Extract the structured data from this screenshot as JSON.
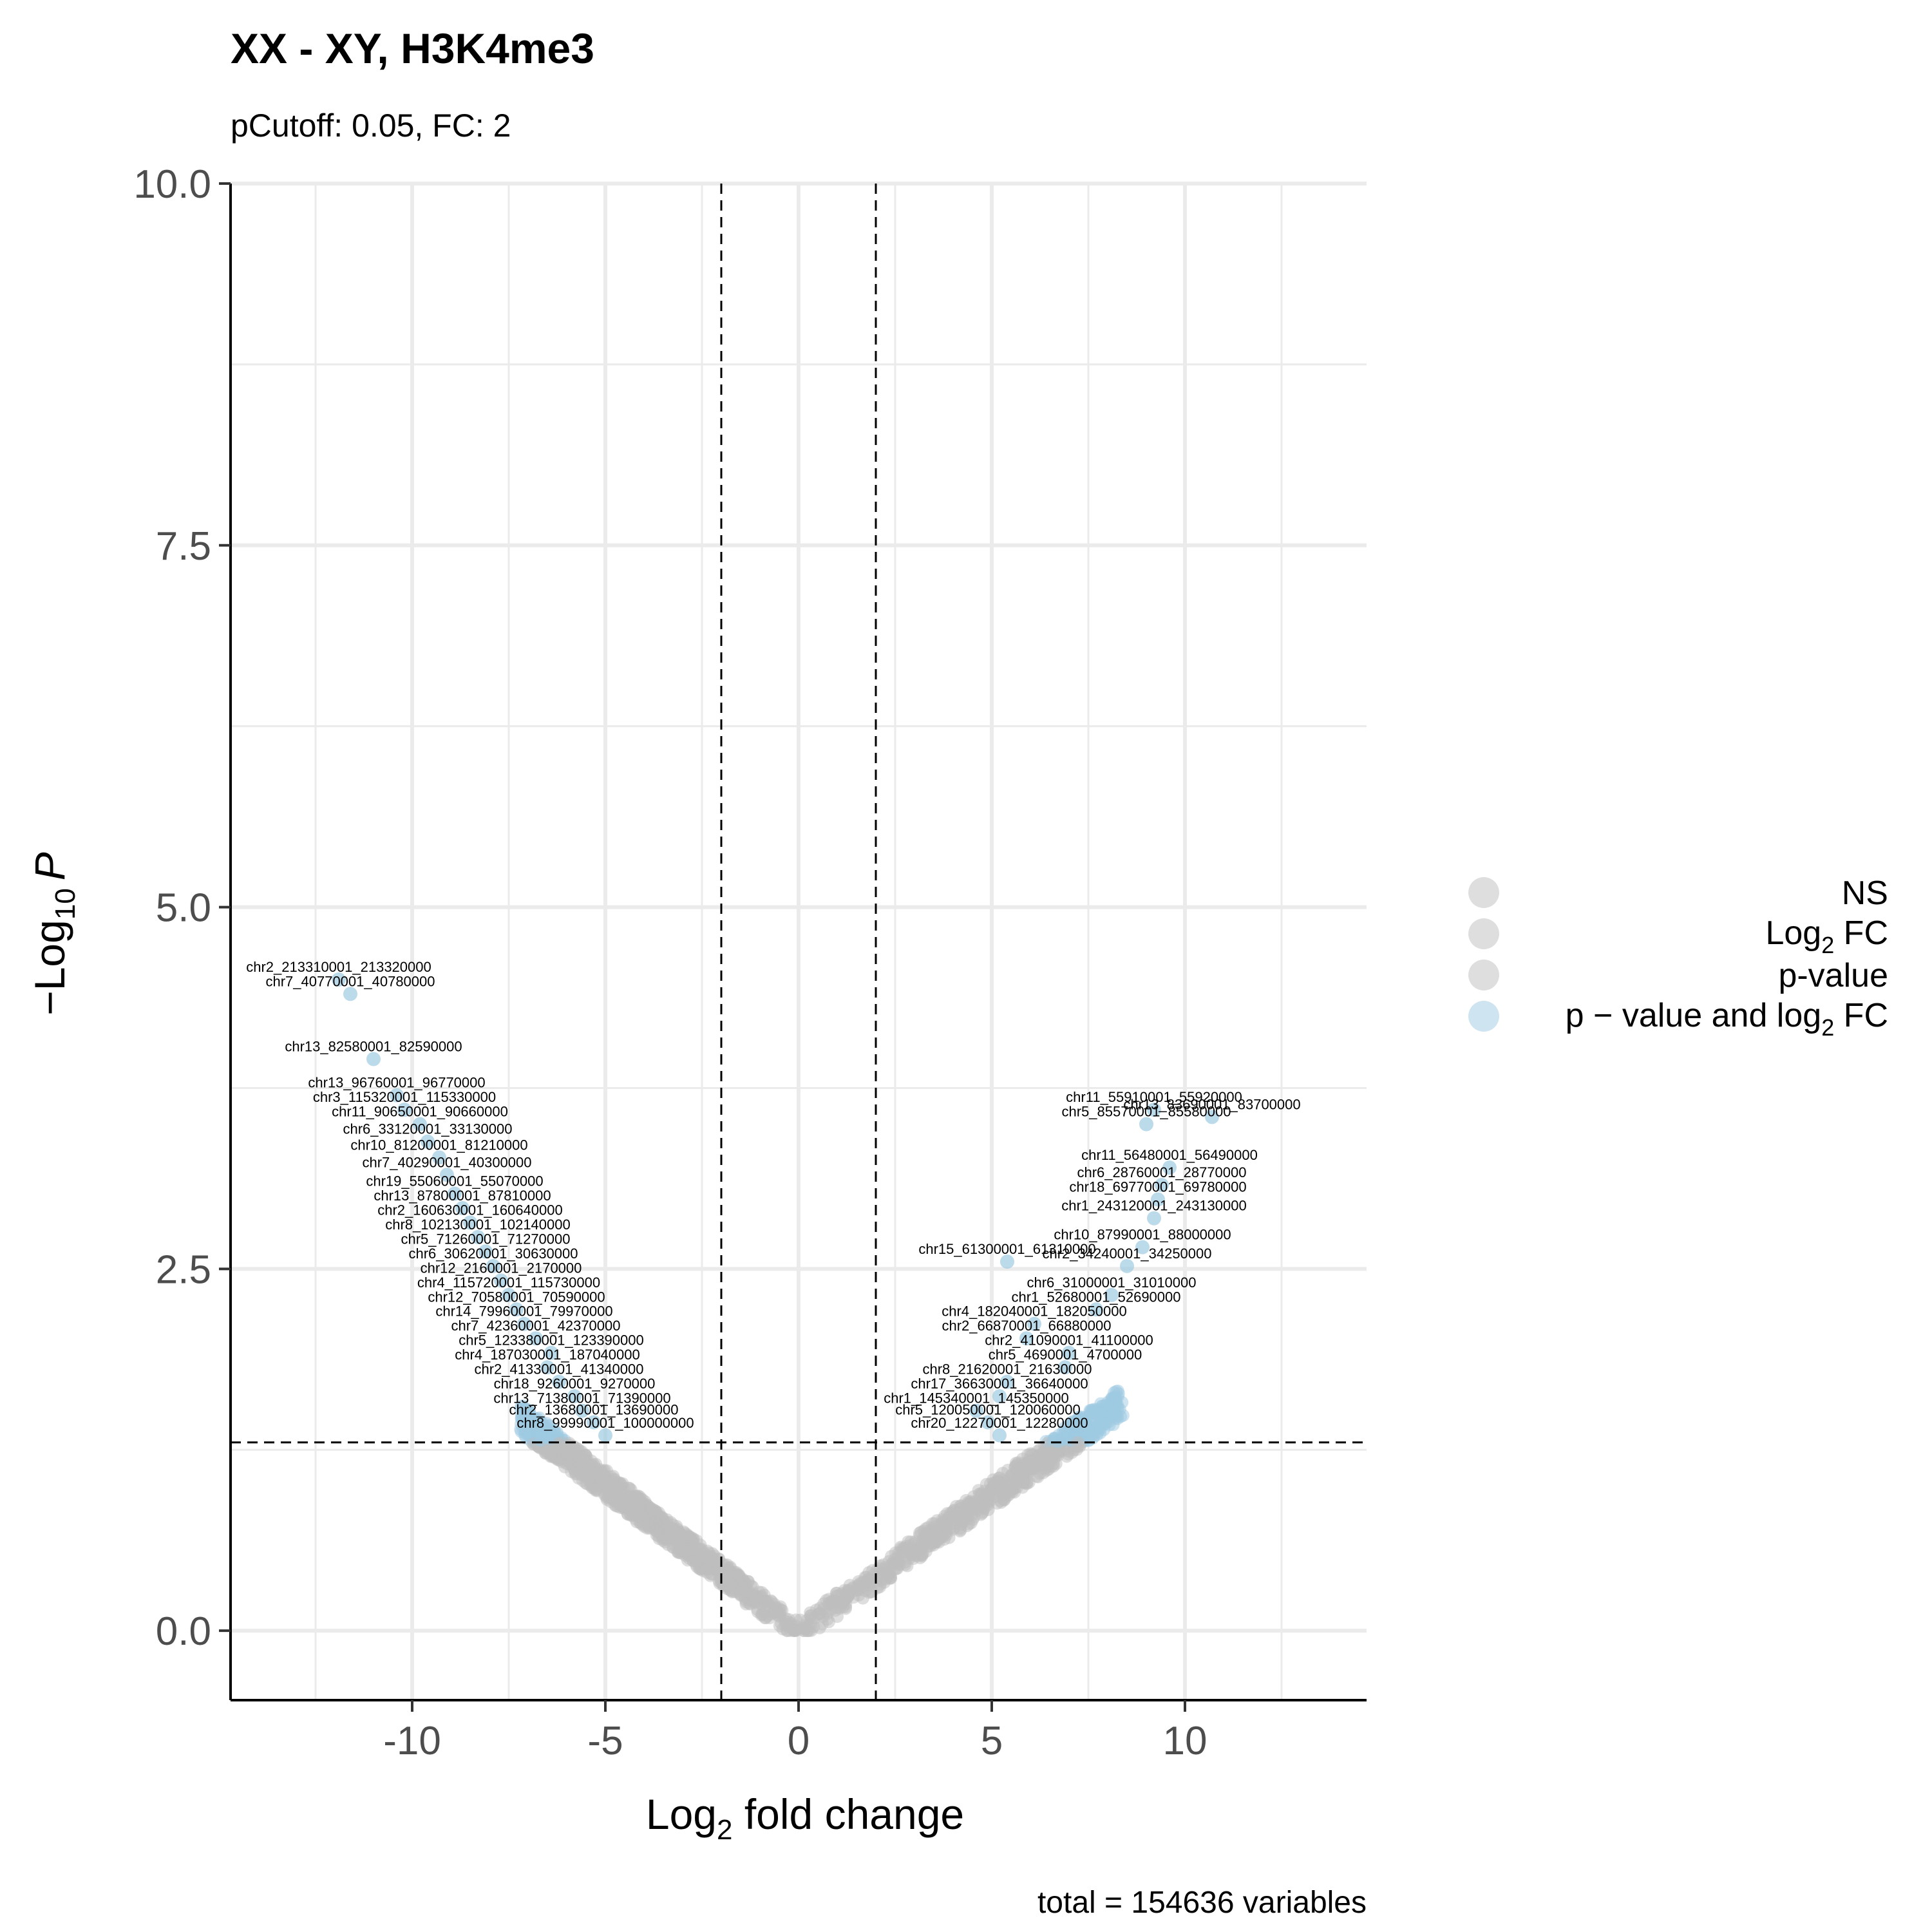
{
  "chart_data": {
    "type": "scatter",
    "title": "XX - XY, H3K4me3",
    "subtitle": "pCutoff: 0.05, FC: 2",
    "xlabel_main": "Log",
    "xlabel_sub": "2",
    "xlabel_rest": " fold change",
    "ylabel_main": "−Log",
    "ylabel_sub": "10",
    "ylabel_var": "P",
    "caption": "total = 154636 variables",
    "xlim": [
      -14.7,
      14.7
    ],
    "ylim": [
      -0.48,
      10.0
    ],
    "x_ticks": [
      -10,
      -5,
      0,
      5,
      10
    ],
    "x_tick_labels": [
      "-10",
      "-5",
      "0",
      "5",
      "10"
    ],
    "y_ticks": [
      0,
      2.5,
      5,
      7.5,
      10
    ],
    "y_tick_labels": [
      "0.0",
      "2.5",
      "5.0",
      "7.5",
      "10.0"
    ],
    "fc_cutoffs": [
      -2,
      2
    ],
    "p_cutoff_line": 1.301,
    "grid": true,
    "legend_position": "right",
    "legend": [
      {
        "label": "NS",
        "color": "#bebebe"
      },
      {
        "label_main": "Log",
        "label_sub": "2",
        "label_rest": " FC",
        "color": "#bebebe"
      },
      {
        "label": "p-value",
        "color": "#bebebe"
      },
      {
        "label_main": "p − value and log",
        "label_sub": "2",
        "label_rest": " FC",
        "color": "#9ecae1"
      }
    ],
    "colors": {
      "ns": "#bebebe",
      "sig": "#9ecae1"
    },
    "labeled_points": [
      {
        "label": "chr2_213310001_213320000",
        "x": -11.9,
        "y": 4.5
      },
      {
        "label": "chr7_40770001_40780000",
        "x": -11.6,
        "y": 4.4
      },
      {
        "label": "chr13_82580001_82590000",
        "x": -11.0,
        "y": 3.95
      },
      {
        "label": "chr13_96760001_96770000",
        "x": -10.4,
        "y": 3.7
      },
      {
        "label": "chr3_115320001_115330000",
        "x": -10.2,
        "y": 3.6
      },
      {
        "label": "chr11_90650001_90660000",
        "x": -9.8,
        "y": 3.5
      },
      {
        "label": "chr6_33120001_33130000",
        "x": -9.6,
        "y": 3.38
      },
      {
        "label": "chr10_81200001_81210000",
        "x": -9.3,
        "y": 3.27
      },
      {
        "label": "chr7_40290001_40300000",
        "x": -9.1,
        "y": 3.15
      },
      {
        "label": "chr19_55060001_55070000",
        "x": -8.9,
        "y": 3.02
      },
      {
        "label": "chr13_87800001_87810000",
        "x": -8.7,
        "y": 2.92
      },
      {
        "label": "chr2_160630001_160640000",
        "x": -8.5,
        "y": 2.82
      },
      {
        "label": "chr8_102130001_102140000",
        "x": -8.3,
        "y": 2.72
      },
      {
        "label": "chr5_71260001_71270000",
        "x": -8.1,
        "y": 2.62
      },
      {
        "label": "chr6_30620001_30630000",
        "x": -7.9,
        "y": 2.52
      },
      {
        "label": "chr12_2160001_2170000",
        "x": -7.7,
        "y": 2.42
      },
      {
        "label": "chr4_115720001_115730000",
        "x": -7.5,
        "y": 2.32
      },
      {
        "label": "chr12_70580001_70590000",
        "x": -7.3,
        "y": 2.22
      },
      {
        "label": "chr14_79960001_79970000",
        "x": -7.1,
        "y": 2.12
      },
      {
        "label": "chr7_42360001_42370000",
        "x": -6.8,
        "y": 2.02
      },
      {
        "label": "chr5_123380001_123390000",
        "x": -6.4,
        "y": 1.92
      },
      {
        "label": "chr4_187030001_187040000",
        "x": -6.5,
        "y": 1.82
      },
      {
        "label": "chr2_41330001_41340000",
        "x": -6.2,
        "y": 1.72
      },
      {
        "label": "chr18_9260001_9270000",
        "x": -5.8,
        "y": 1.62
      },
      {
        "label": "chr13_71380001_71390000",
        "x": -5.6,
        "y": 1.52
      },
      {
        "label": "chr2_13680001_13690000",
        "x": -5.3,
        "y": 1.44
      },
      {
        "label": "chr8_99990001_100000000",
        "x": -5.0,
        "y": 1.35
      },
      {
        "label": "chr13_83690001_83700000",
        "x": 10.7,
        "y": 3.55
      },
      {
        "label": "chr11_55910001_55920000",
        "x": 9.2,
        "y": 3.6
      },
      {
        "label": "chr5_85570001_85580000",
        "x": 9.0,
        "y": 3.5
      },
      {
        "label": "chr11_56480001_56490000",
        "x": 9.6,
        "y": 3.2
      },
      {
        "label": "chr6_28760001_28770000",
        "x": 9.4,
        "y": 3.08
      },
      {
        "label": "chr18_69770001_69780000",
        "x": 9.3,
        "y": 2.98
      },
      {
        "label": "chr1_243120001_243130000",
        "x": 9.2,
        "y": 2.85
      },
      {
        "label": "chr10_87990001_88000000",
        "x": 8.9,
        "y": 2.65
      },
      {
        "label": "chr2_34240001_34250000",
        "x": 8.5,
        "y": 2.52
      },
      {
        "label": "chr15_61300001_61310000",
        "x": 5.4,
        "y": 2.55
      },
      {
        "label": "chr6_31000001_31010000",
        "x": 8.1,
        "y": 2.32
      },
      {
        "label": "chr1_52680001_52690000",
        "x": 7.7,
        "y": 2.22
      },
      {
        "label": "chr4_182040001_182050000",
        "x": 6.1,
        "y": 2.12
      },
      {
        "label": "chr2_66870001_66880000",
        "x": 5.9,
        "y": 2.02
      },
      {
        "label": "chr2_41090001_41100000",
        "x": 7.0,
        "y": 1.92
      },
      {
        "label": "chr5_4690001_4700000",
        "x": 6.9,
        "y": 1.82
      },
      {
        "label": "chr8_21620001_21630000",
        "x": 5.4,
        "y": 1.72
      },
      {
        "label": "chr17_36630001_36640000",
        "x": 5.2,
        "y": 1.62
      },
      {
        "label": "chr1_145340001_145350000",
        "x": 4.6,
        "y": 1.52
      },
      {
        "label": "chr5_120050001_120060000",
        "x": 4.9,
        "y": 1.44
      },
      {
        "label": "chr20_12270001_12280000",
        "x": 5.2,
        "y": 1.35
      }
    ]
  }
}
